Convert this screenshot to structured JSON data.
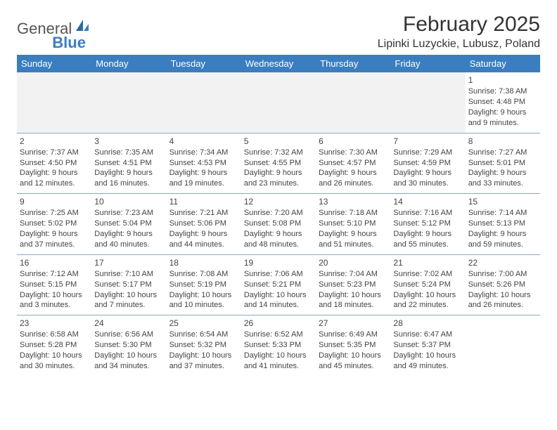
{
  "logo": {
    "text1": "General",
    "text2": "Blue"
  },
  "title": "February 2025",
  "location": "Lipinki Luzyckie, Lubusz, Poland",
  "colors": {
    "header_bg": "#3b7ec0",
    "header_text": "#ffffff",
    "border": "#8aa8c4",
    "body_text": "#444444",
    "empty_bg": "#f2f2f2",
    "logo_accent": "#3b7ec0",
    "logo_gray": "#555555"
  },
  "day_labels": [
    "Sunday",
    "Monday",
    "Tuesday",
    "Wednesday",
    "Thursday",
    "Friday",
    "Saturday"
  ],
  "weeks": [
    [
      null,
      null,
      null,
      null,
      null,
      null,
      {
        "n": "1",
        "sr": "7:38 AM",
        "ss": "4:48 PM",
        "dl": "9 hours and 9 minutes."
      }
    ],
    [
      {
        "n": "2",
        "sr": "7:37 AM",
        "ss": "4:50 PM",
        "dl": "9 hours and 12 minutes."
      },
      {
        "n": "3",
        "sr": "7:35 AM",
        "ss": "4:51 PM",
        "dl": "9 hours and 16 minutes."
      },
      {
        "n": "4",
        "sr": "7:34 AM",
        "ss": "4:53 PM",
        "dl": "9 hours and 19 minutes."
      },
      {
        "n": "5",
        "sr": "7:32 AM",
        "ss": "4:55 PM",
        "dl": "9 hours and 23 minutes."
      },
      {
        "n": "6",
        "sr": "7:30 AM",
        "ss": "4:57 PM",
        "dl": "9 hours and 26 minutes."
      },
      {
        "n": "7",
        "sr": "7:29 AM",
        "ss": "4:59 PM",
        "dl": "9 hours and 30 minutes."
      },
      {
        "n": "8",
        "sr": "7:27 AM",
        "ss": "5:01 PM",
        "dl": "9 hours and 33 minutes."
      }
    ],
    [
      {
        "n": "9",
        "sr": "7:25 AM",
        "ss": "5:02 PM",
        "dl": "9 hours and 37 minutes."
      },
      {
        "n": "10",
        "sr": "7:23 AM",
        "ss": "5:04 PM",
        "dl": "9 hours and 40 minutes."
      },
      {
        "n": "11",
        "sr": "7:21 AM",
        "ss": "5:06 PM",
        "dl": "9 hours and 44 minutes."
      },
      {
        "n": "12",
        "sr": "7:20 AM",
        "ss": "5:08 PM",
        "dl": "9 hours and 48 minutes."
      },
      {
        "n": "13",
        "sr": "7:18 AM",
        "ss": "5:10 PM",
        "dl": "9 hours and 51 minutes."
      },
      {
        "n": "14",
        "sr": "7:16 AM",
        "ss": "5:12 PM",
        "dl": "9 hours and 55 minutes."
      },
      {
        "n": "15",
        "sr": "7:14 AM",
        "ss": "5:13 PM",
        "dl": "9 hours and 59 minutes."
      }
    ],
    [
      {
        "n": "16",
        "sr": "7:12 AM",
        "ss": "5:15 PM",
        "dl": "10 hours and 3 minutes."
      },
      {
        "n": "17",
        "sr": "7:10 AM",
        "ss": "5:17 PM",
        "dl": "10 hours and 7 minutes."
      },
      {
        "n": "18",
        "sr": "7:08 AM",
        "ss": "5:19 PM",
        "dl": "10 hours and 10 minutes."
      },
      {
        "n": "19",
        "sr": "7:06 AM",
        "ss": "5:21 PM",
        "dl": "10 hours and 14 minutes."
      },
      {
        "n": "20",
        "sr": "7:04 AM",
        "ss": "5:23 PM",
        "dl": "10 hours and 18 minutes."
      },
      {
        "n": "21",
        "sr": "7:02 AM",
        "ss": "5:24 PM",
        "dl": "10 hours and 22 minutes."
      },
      {
        "n": "22",
        "sr": "7:00 AM",
        "ss": "5:26 PM",
        "dl": "10 hours and 26 minutes."
      }
    ],
    [
      {
        "n": "23",
        "sr": "6:58 AM",
        "ss": "5:28 PM",
        "dl": "10 hours and 30 minutes."
      },
      {
        "n": "24",
        "sr": "6:56 AM",
        "ss": "5:30 PM",
        "dl": "10 hours and 34 minutes."
      },
      {
        "n": "25",
        "sr": "6:54 AM",
        "ss": "5:32 PM",
        "dl": "10 hours and 37 minutes."
      },
      {
        "n": "26",
        "sr": "6:52 AM",
        "ss": "5:33 PM",
        "dl": "10 hours and 41 minutes."
      },
      {
        "n": "27",
        "sr": "6:49 AM",
        "ss": "5:35 PM",
        "dl": "10 hours and 45 minutes."
      },
      {
        "n": "28",
        "sr": "6:47 AM",
        "ss": "5:37 PM",
        "dl": "10 hours and 49 minutes."
      },
      null
    ]
  ],
  "labels": {
    "sunrise": "Sunrise:",
    "sunset": "Sunset:",
    "daylight": "Daylight:"
  }
}
